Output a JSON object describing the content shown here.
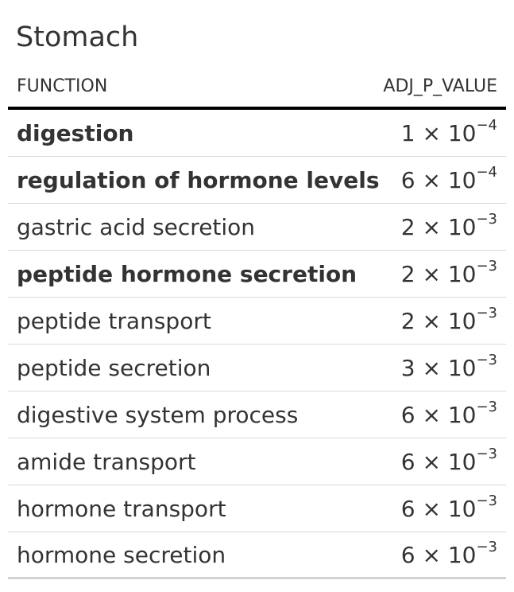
{
  "title": "Stomach",
  "columns": {
    "function": "FUNCTION",
    "adj_p_value": "ADJ_P_VALUE"
  },
  "rows": [
    {
      "function": "digestion",
      "bold": true,
      "coef": "1",
      "times": "×",
      "base": "10",
      "exp": "−4"
    },
    {
      "function": "regulation of hormone levels",
      "bold": true,
      "coef": "6",
      "times": "×",
      "base": "10",
      "exp": "−4"
    },
    {
      "function": "gastric acid secretion",
      "bold": false,
      "coef": "2",
      "times": "×",
      "base": "10",
      "exp": "−3"
    },
    {
      "function": "peptide hormone secretion",
      "bold": true,
      "coef": "2",
      "times": "×",
      "base": "10",
      "exp": "−3"
    },
    {
      "function": "peptide transport",
      "bold": false,
      "coef": "2",
      "times": "×",
      "base": "10",
      "exp": "−3"
    },
    {
      "function": "peptide secretion",
      "bold": false,
      "coef": "3",
      "times": "×",
      "base": "10",
      "exp": "−3"
    },
    {
      "function": "digestive system process",
      "bold": false,
      "coef": "6",
      "times": "×",
      "base": "10",
      "exp": "−3"
    },
    {
      "function": "amide transport",
      "bold": false,
      "coef": "6",
      "times": "×",
      "base": "10",
      "exp": "−3"
    },
    {
      "function": "hormone transport",
      "bold": false,
      "coef": "6",
      "times": "×",
      "base": "10",
      "exp": "−3"
    },
    {
      "function": "hormone secretion",
      "bold": false,
      "coef": "6",
      "times": "×",
      "base": "10",
      "exp": "−3"
    }
  ]
}
